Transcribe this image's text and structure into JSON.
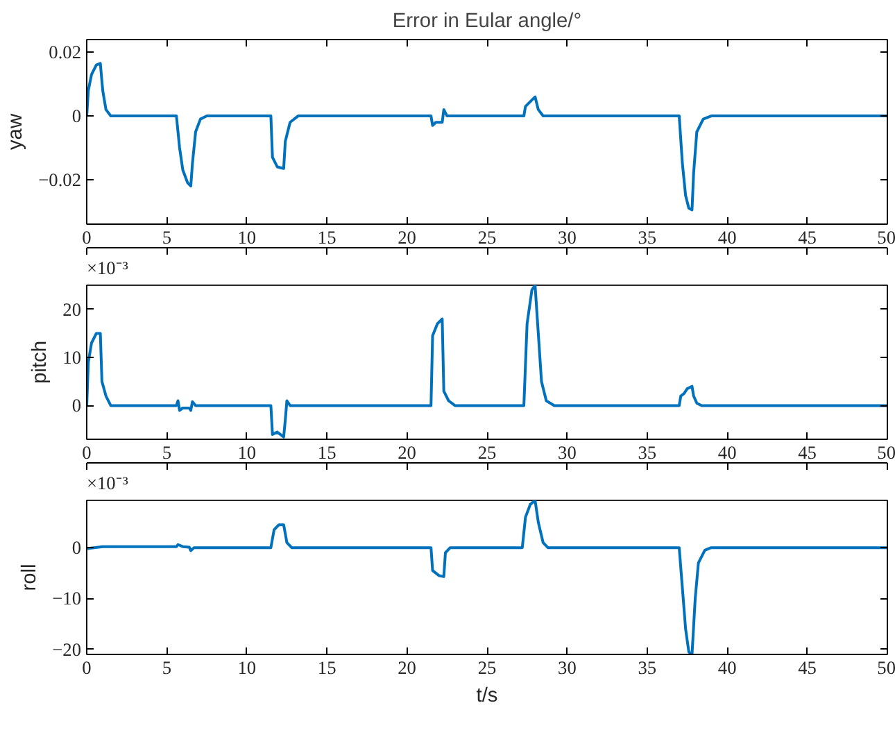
{
  "chart_data": [
    {
      "type": "line",
      "title": "Error in Eular angle/°",
      "ylabel": "yaw",
      "xlim": [
        0,
        50
      ],
      "xticks": [
        0,
        5,
        10,
        15,
        20,
        25,
        30,
        35,
        40,
        45,
        50
      ],
      "ylim": [
        -0.034,
        0.024
      ],
      "yticks": [
        {
          "value": -0.02,
          "label": "−0.02"
        },
        0,
        0.02
      ],
      "grid": false,
      "series": [
        {
          "color": "#0072bd",
          "x": [
            0,
            0.1,
            0.3,
            0.6,
            0.85,
            1.0,
            1.2,
            1.5,
            5.6,
            5.8,
            6.0,
            6.3,
            6.5,
            6.6,
            6.8,
            7.1,
            7.5,
            11.5,
            11.6,
            11.9,
            12.3,
            12.4,
            12.7,
            13.2,
            21.5,
            21.6,
            21.8,
            22.2,
            22.3,
            22.5,
            27.3,
            27.4,
            27.8,
            28.0,
            28.2,
            28.5,
            37.0,
            37.2,
            37.4,
            37.6,
            37.8,
            37.9,
            38.1,
            38.5,
            39,
            50
          ],
          "values": [
            0,
            0.008,
            0.013,
            0.016,
            0.0165,
            0.008,
            0.002,
            0,
            0,
            -0.01,
            -0.017,
            -0.021,
            -0.022,
            -0.015,
            -0.005,
            -0.001,
            0,
            0,
            -0.013,
            -0.016,
            -0.0165,
            -0.008,
            -0.002,
            0,
            0,
            -0.003,
            -0.002,
            -0.002,
            0.002,
            0,
            0,
            0.003,
            0.005,
            0.006,
            0.002,
            0,
            0,
            -0.015,
            -0.025,
            -0.029,
            -0.0295,
            -0.018,
            -0.005,
            -0.001,
            0,
            0
          ]
        }
      ]
    },
    {
      "type": "line",
      "ylabel": "pitch",
      "annotations": [
        "×10⁻³"
      ],
      "xlim": [
        0,
        50
      ],
      "xticks": [
        0,
        5,
        10,
        15,
        20,
        25,
        30,
        35,
        40,
        45,
        50
      ],
      "ylim": [
        -7,
        25
      ],
      "yticks": [
        0,
        10,
        20
      ],
      "grid": false,
      "series": [
        {
          "color": "#0072bd",
          "x": [
            0,
            0.1,
            0.3,
            0.6,
            0.85,
            0.95,
            1.2,
            1.5,
            5.6,
            5.7,
            5.8,
            6.0,
            6.4,
            6.5,
            6.6,
            6.8,
            11.5,
            11.6,
            11.9,
            12.3,
            12.4,
            12.5,
            12.7,
            21.5,
            21.6,
            21.9,
            22.2,
            22.3,
            22.6,
            23,
            27.3,
            27.5,
            27.8,
            28.0,
            28.2,
            28.4,
            28.7,
            29.2,
            37.0,
            37.1,
            37.3,
            37.5,
            37.8,
            37.9,
            38.1,
            38.4,
            50
          ],
          "values": [
            0,
            9,
            13,
            15,
            15,
            5,
            2,
            0,
            0,
            1,
            -1,
            -0.5,
            -0.5,
            -1,
            0.8,
            0,
            0,
            -6,
            -5.5,
            -6.5,
            -3,
            1,
            0,
            0,
            14.5,
            17,
            18,
            3,
            1,
            0,
            0,
            17,
            24,
            25,
            15,
            5,
            1,
            0,
            0,
            2,
            2.5,
            3.5,
            4,
            2,
            0.5,
            0,
            0
          ]
        }
      ]
    },
    {
      "type": "line",
      "ylabel": "roll",
      "xlabel": "t/s",
      "annotations": [
        "×10⁻³"
      ],
      "xlim": [
        0,
        50
      ],
      "xticks": [
        0,
        5,
        10,
        15,
        20,
        25,
        30,
        35,
        40,
        45,
        50
      ],
      "ylim": [
        -21,
        9.3
      ],
      "yticks": [
        {
          "value": -20,
          "label": "−20"
        },
        {
          "value": -10,
          "label": "−10"
        },
        0
      ],
      "grid": false,
      "series": [
        {
          "color": "#0072bd",
          "x": [
            0,
            1,
            5.6,
            5.7,
            6.0,
            6.4,
            6.5,
            6.7,
            11.5,
            11.7,
            12.0,
            12.3,
            12.5,
            12.8,
            21.5,
            21.6,
            22.0,
            22.3,
            22.4,
            22.7,
            27.2,
            27.4,
            27.7,
            28.0,
            28.2,
            28.5,
            28.8,
            37.0,
            37.2,
            37.4,
            37.6,
            37.8,
            38.0,
            38.2,
            38.6,
            39,
            50
          ],
          "values": [
            -0.2,
            0.2,
            0.2,
            0.6,
            0.2,
            0.1,
            -0.6,
            0,
            0,
            3.5,
            4.5,
            4.5,
            1,
            0,
            0,
            -4.5,
            -5.5,
            -5.7,
            -1,
            0,
            0,
            6,
            8.5,
            9.3,
            5,
            1,
            0,
            0,
            -8,
            -16,
            -20.5,
            -21,
            -10,
            -3,
            -0.5,
            0,
            0
          ]
        }
      ]
    }
  ]
}
